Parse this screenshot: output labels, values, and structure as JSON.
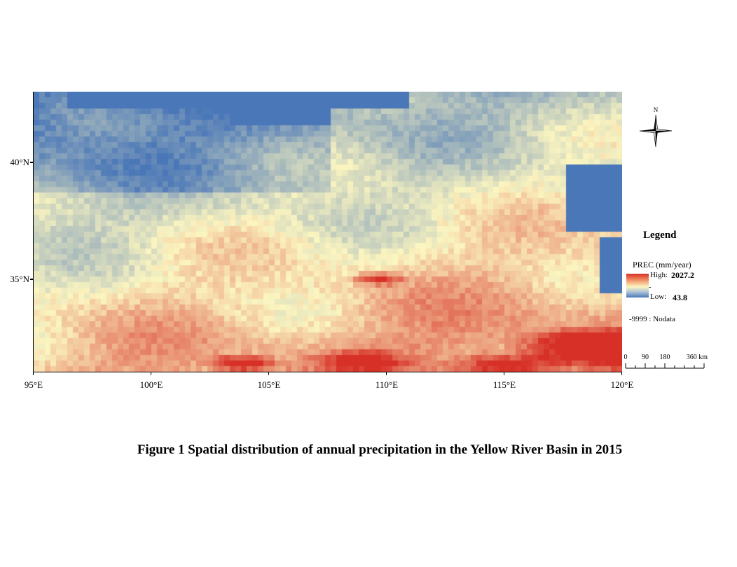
{
  "figure": {
    "caption": "Figure 1  Spatial distribution of annual precipitation in the Yellow River Basin in 2015"
  },
  "map": {
    "extent": {
      "lon": [
        95,
        120
      ],
      "lat": [
        31,
        43
      ]
    },
    "x_ticks": [
      {
        "value": 95,
        "label": "95°E"
      },
      {
        "value": 100,
        "label": "100°E"
      },
      {
        "value": 105,
        "label": "105°E"
      },
      {
        "value": 110,
        "label": "110°E"
      },
      {
        "value": 115,
        "label": "115°E"
      },
      {
        "value": 120,
        "label": "120°E"
      }
    ],
    "y_ticks": [
      {
        "value": 40,
        "label": "40°N"
      },
      {
        "value": 35,
        "label": "35°N"
      }
    ],
    "variable": "annual precipitation",
    "colors": {
      "low": "#4a77b8",
      "mid": "#fbf5c0",
      "high": "#d73027",
      "nodata": "#4a77b8"
    }
  },
  "north_arrow": {
    "label": "N"
  },
  "legend": {
    "title": "Legend",
    "field": "PREC  (mm/year)",
    "high_label": "High:",
    "high_value": "2027.2",
    "mid_tick": "-",
    "low_label": "Low:",
    "low_value": "43.8",
    "nodata": "-9999 : Nodata"
  },
  "scale_bar": {
    "labels": [
      "0",
      "90",
      "180",
      "360 km"
    ],
    "stops_km": [
      0,
      90,
      180,
      360
    ]
  }
}
